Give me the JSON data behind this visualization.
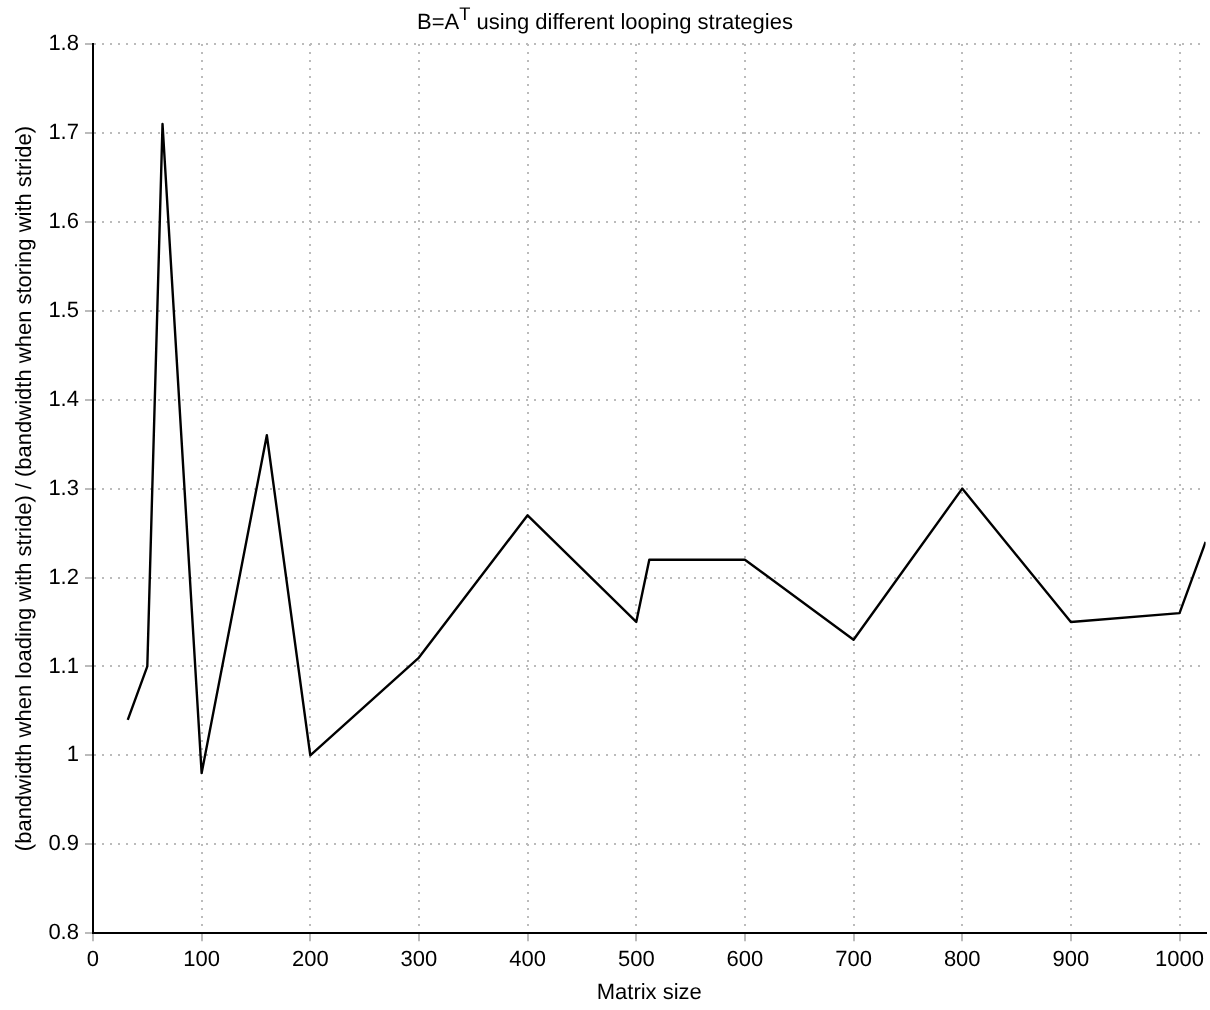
{
  "chart_data": {
    "type": "line",
    "title": "B=A$^{T}$ using different looping strategies",
    "xlabel": "Matrix size",
    "ylabel": "(bandwidth when loading with stride) / (bandwidth when storing with stride)",
    "x": [
      32,
      50,
      64,
      100,
      160,
      200,
      300,
      400,
      500,
      512,
      600,
      700,
      800,
      900,
      1000,
      1024
    ],
    "series": [
      {
        "color": "#000000",
        "values": [
          1.04,
          1.1,
          1.71,
          0.98,
          1.36,
          1.0,
          1.11,
          1.27,
          1.15,
          1.22,
          1.22,
          1.13,
          1.3,
          1.15,
          1.16,
          1.24
        ]
      }
    ],
    "xlim": [
      0,
      1024
    ],
    "xticks": [
      0,
      100,
      200,
      300,
      400,
      500,
      600,
      700,
      800,
      900,
      1000
    ],
    "ylim": [
      0.8,
      1.8
    ],
    "yticks": [
      0.8,
      0.9,
      1,
      1.1,
      1.2,
      1.3,
      1.4,
      1.5,
      1.6,
      1.7,
      1.8
    ],
    "grid": true,
    "legend": false,
    "marker": "none",
    "line_style": "solid"
  }
}
